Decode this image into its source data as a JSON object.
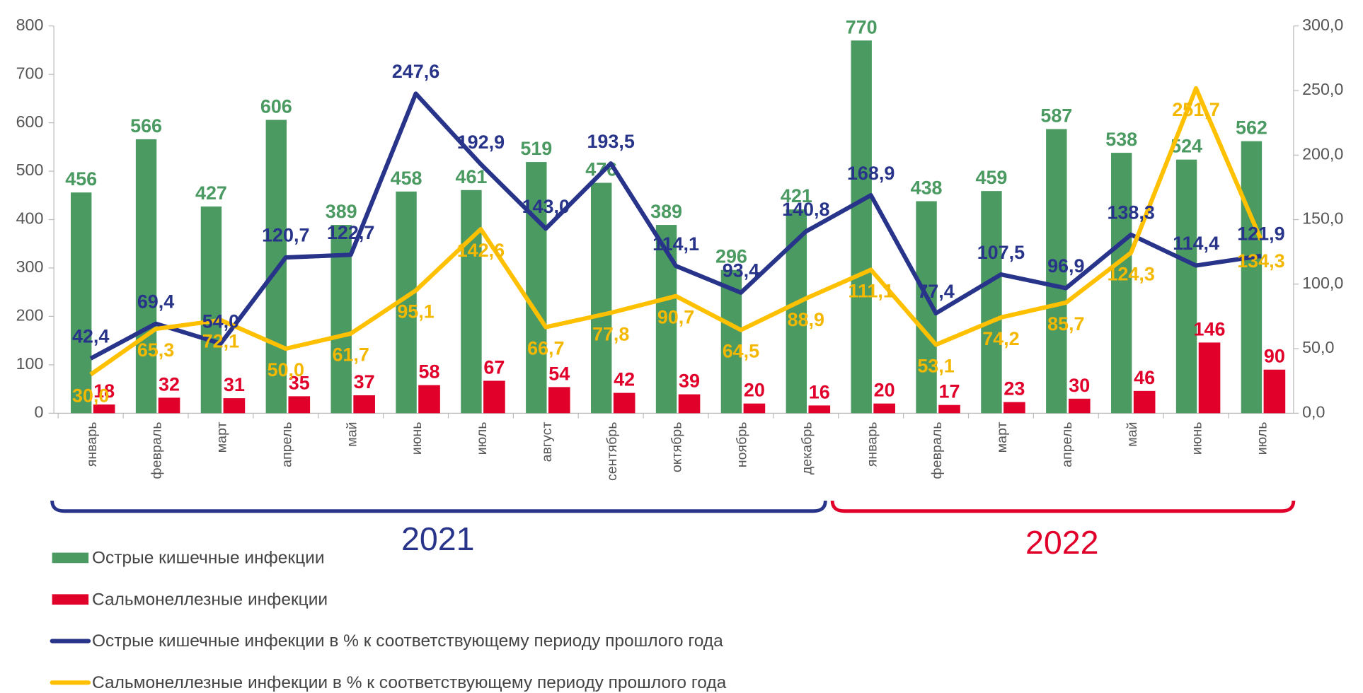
{
  "chart_data": {
    "type": "combo",
    "categories": [
      "январь",
      "февраль",
      "март",
      "апрель",
      "май",
      "июнь",
      "июль",
      "август",
      "сентябрь",
      "октябрь",
      "ноябрь",
      "декабрь",
      "январь",
      "февраль",
      "март",
      "апрель",
      "май",
      "июнь",
      "июль"
    ],
    "groups": [
      "2021",
      "2022"
    ],
    "series": [
      {
        "name": "Острые кишечные инфекции",
        "type": "bar",
        "color": "#4a9a62",
        "label_color": "#4a9a62",
        "values": [
          456,
          566,
          427,
          606,
          389,
          458,
          461,
          519,
          476,
          389,
          296,
          421,
          770,
          438,
          459,
          587,
          538,
          524,
          562
        ]
      },
      {
        "name": "Сальмонеллезные инфекции",
        "type": "bar",
        "color": "#e0002a",
        "label_color": "#e0002a",
        "values": [
          18,
          32,
          31,
          35,
          37,
          58,
          67,
          54,
          42,
          39,
          20,
          16,
          20,
          17,
          23,
          30,
          46,
          146,
          90
        ]
      },
      {
        "name": "Острые кишечные инфекции в % к соответствующему периоду прошлого года",
        "type": "line",
        "axis": "y2",
        "color": "#28348a",
        "label_color": "#28348a",
        "values": [
          42.4,
          69.4,
          54.0,
          120.7,
          122.7,
          247.6,
          192.9,
          143.0,
          193.5,
          114.1,
          93.4,
          140.8,
          168.9,
          77.4,
          107.5,
          96.9,
          138.3,
          114.4,
          121.9
        ],
        "value_labels": [
          "42,4",
          "69,4",
          "54,0",
          "120,7",
          "122,7",
          "247,6",
          "192,9",
          "143,0",
          "193,5",
          "114,1",
          "93,4",
          "140,8",
          "168,9",
          "77,4",
          "107,5",
          "96,9",
          "138,3",
          "114,4",
          "121,9"
        ]
      },
      {
        "name": "Сальмонеллезные инфекции в % к соответствующему периоду прошлого года",
        "type": "line",
        "axis": "y2",
        "color": "#ffc000",
        "label_color": "#f5b800",
        "values": [
          30.0,
          65.3,
          72.1,
          50.0,
          61.7,
          95.1,
          142.6,
          66.7,
          77.8,
          90.7,
          64.5,
          88.9,
          111.1,
          53.1,
          74.2,
          85.7,
          124.3,
          251.7,
          134.3
        ],
        "value_labels": [
          "30,0",
          "65,3",
          "72,1",
          "50,0",
          "61,7",
          "95,1",
          "142,6",
          "66,7",
          "77,8",
          "90,7",
          "64,5",
          "88,9",
          "111,1",
          "53,1",
          "74,2",
          "85,7",
          "124,3",
          "251,7",
          "134,3"
        ]
      }
    ],
    "ylim": [
      0,
      800
    ],
    "yticks": [
      0,
      100,
      200,
      300,
      400,
      500,
      600,
      700,
      800
    ],
    "y2lim": [
      0,
      300
    ],
    "y2ticks": [
      {
        "value": 0,
        "label": "0,0"
      },
      {
        "value": 50,
        "label": "50,0"
      },
      {
        "value": 100,
        "label": "100,0"
      },
      {
        "value": 150,
        "label": "150,0"
      },
      {
        "value": 200,
        "label": "200,0"
      },
      {
        "value": 250,
        "label": "250,0"
      },
      {
        "value": 300,
        "label": "300,0"
      }
    ],
    "grid": false,
    "legend": "bottom-left"
  }
}
